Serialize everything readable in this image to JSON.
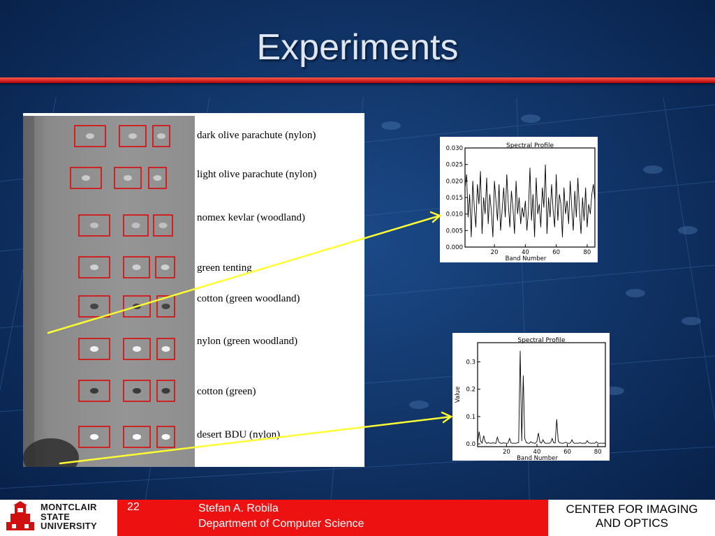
{
  "slide": {
    "title": "Experiments",
    "page_number": "22"
  },
  "materials": [
    "dark olive parachute (nylon)",
    "light olive parachute (nylon)",
    "nomex kevlar (woodland)",
    "green tenting",
    "cotton (green woodland)",
    "nylon (green woodland)",
    "cotton (green)",
    "desert BDU (nylon)"
  ],
  "footer": {
    "university_line1": "MONTCLAIR",
    "university_line2": "STATE",
    "university_line3": "UNIVERSITY",
    "author": "Stefan A. Robila",
    "department": "Department of Computer Science",
    "center_line1": "CENTER FOR IMAGING",
    "center_line2": "AND OPTICS"
  },
  "colors": {
    "background": "#0d2a55",
    "title_rule": "#d01010",
    "footer_red": "#ee1111",
    "arrow": "#ffff33",
    "roi_box": "#e00000"
  },
  "chart_data": [
    {
      "type": "line",
      "title": "Spectral Profile",
      "xlabel": "Band Number",
      "ylabel": "",
      "xlim": [
        1,
        85
      ],
      "ylim": [
        0,
        0.03
      ],
      "xticks": [
        20,
        40,
        60,
        80
      ],
      "yticks": [
        "0.000",
        "0.005",
        "0.010",
        "0.015",
        "0.020",
        "0.025",
        "0.030"
      ],
      "x": [
        1,
        2,
        3,
        4,
        5,
        6,
        7,
        8,
        9,
        10,
        11,
        12,
        13,
        14,
        15,
        16,
        17,
        18,
        19,
        20,
        21,
        22,
        23,
        24,
        25,
        26,
        27,
        28,
        29,
        30,
        31,
        32,
        33,
        34,
        35,
        36,
        37,
        38,
        39,
        40,
        41,
        42,
        43,
        44,
        45,
        46,
        47,
        48,
        49,
        50,
        51,
        52,
        53,
        54,
        55,
        56,
        57,
        58,
        59,
        60,
        61,
        62,
        63,
        64,
        65,
        66,
        67,
        68,
        69,
        70,
        71,
        72,
        73,
        74,
        75,
        76,
        77,
        78,
        79,
        80,
        81,
        82,
        83,
        84,
        85
      ],
      "values": [
        0.018,
        0.022,
        0.009,
        0.016,
        0.003,
        0.02,
        0.012,
        0.006,
        0.019,
        0.013,
        0.023,
        0.004,
        0.015,
        0.01,
        0.021,
        0.007,
        0.016,
        0.011,
        0.003,
        0.02,
        0.014,
        0.008,
        0.019,
        0.005,
        0.011,
        0.018,
        0.009,
        0.022,
        0.013,
        0.006,
        0.017,
        0.012,
        0.004,
        0.02,
        0.01,
        0.015,
        0.007,
        0.012,
        0.009,
        0.014,
        0.005,
        0.011,
        0.024,
        0.008,
        0.016,
        0.003,
        0.021,
        0.01,
        0.013,
        0.006,
        0.018,
        0.012,
        0.025,
        0.004,
        0.015,
        0.009,
        0.019,
        0.011,
        0.006,
        0.022,
        0.008,
        0.016,
        0.013,
        0.003,
        0.018,
        0.01,
        0.014,
        0.007,
        0.02,
        0.012,
        0.005,
        0.017,
        0.009,
        0.021,
        0.011,
        0.004,
        0.015,
        0.008,
        0.018,
        0.006,
        0.013,
        0.01,
        0.016,
        0.019,
        0.014
      ]
    },
    {
      "type": "line",
      "title": "Spectral Profile",
      "xlabel": "Band Number",
      "ylabel": "Value",
      "xlim": [
        1,
        85
      ],
      "ylim": [
        -0.01,
        0.37
      ],
      "xticks": [
        20,
        40,
        60,
        80
      ],
      "yticks": [
        "0.0",
        "0.1",
        "0.2",
        "0.3"
      ],
      "x": [
        1,
        2,
        3,
        4,
        5,
        6,
        7,
        8,
        9,
        10,
        11,
        12,
        13,
        14,
        15,
        16,
        17,
        18,
        19,
        20,
        21,
        22,
        23,
        24,
        25,
        26,
        27,
        28,
        29,
        30,
        31,
        32,
        33,
        34,
        35,
        36,
        37,
        38,
        39,
        40,
        41,
        42,
        43,
        44,
        45,
        46,
        47,
        48,
        49,
        50,
        51,
        52,
        53,
        54,
        55,
        56,
        57,
        58,
        59,
        60,
        61,
        62,
        63,
        64,
        65,
        66,
        67,
        68,
        69,
        70,
        71,
        72,
        73,
        74,
        75,
        76,
        77,
        78,
        79,
        80,
        81,
        82,
        83,
        84,
        85
      ],
      "values": [
        0.005,
        0.045,
        0.01,
        0.003,
        0.03,
        0.008,
        0.002,
        0.005,
        0.003,
        0.002,
        0.004,
        0.003,
        0.002,
        0.025,
        0.006,
        0.003,
        0.002,
        0.004,
        0.003,
        0.002,
        0.003,
        0.02,
        0.004,
        0.002,
        0.003,
        0.002,
        0.004,
        0.005,
        0.34,
        0.01,
        0.25,
        0.02,
        0.005,
        0.003,
        0.002,
        0.008,
        0.004,
        0.003,
        0.002,
        0.01,
        0.04,
        0.006,
        0.003,
        0.015,
        0.004,
        0.002,
        0.003,
        0.002,
        0.005,
        0.02,
        0.004,
        0.003,
        0.09,
        0.01,
        0.004,
        0.003,
        0.002,
        0.004,
        0.006,
        0.003,
        0.002,
        0.003,
        0.015,
        0.004,
        0.002,
        0.003,
        0.002,
        0.004,
        0.003,
        0.002,
        0.003,
        0.002,
        0.012,
        0.004,
        0.003,
        0.002,
        0.003,
        0.002,
        0.008,
        0.003,
        0.002,
        0.003,
        0.002,
        0.003,
        0.002
      ]
    }
  ]
}
